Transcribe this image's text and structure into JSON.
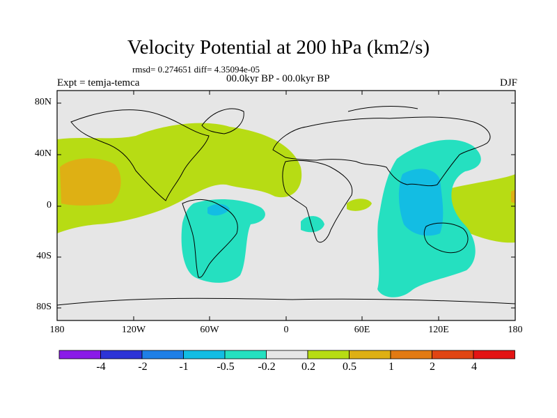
{
  "header": {
    "title": "Velocity Potential at 200 hPa (km2/s)",
    "stats": "rmsd= 0.274651 diff= 4.35094e-05",
    "expt": "Expt = temja-temca",
    "period": "00.0kyr BP - 00.0kyr BP",
    "season": "DJF"
  },
  "map": {
    "y_axis_labels": [
      "80N",
      "40N",
      "0",
      "40S",
      "80S"
    ],
    "x_axis_labels": [
      "180",
      "120W",
      "60W",
      "0",
      "60E",
      "120E",
      "180"
    ]
  },
  "legend": {
    "colors": [
      "#8a1be8",
      "#2d34d6",
      "#1f7fe6",
      "#13bde3",
      "#25e0c0",
      "#e6e6e6",
      "#b7dc14",
      "#deb014",
      "#e27a13",
      "#e04513",
      "#e31414"
    ],
    "labels": [
      "-4",
      "-2",
      "-1",
      "-0.5",
      "-0.2",
      "0.2",
      "0.5",
      "1",
      "2",
      "4"
    ]
  }
}
